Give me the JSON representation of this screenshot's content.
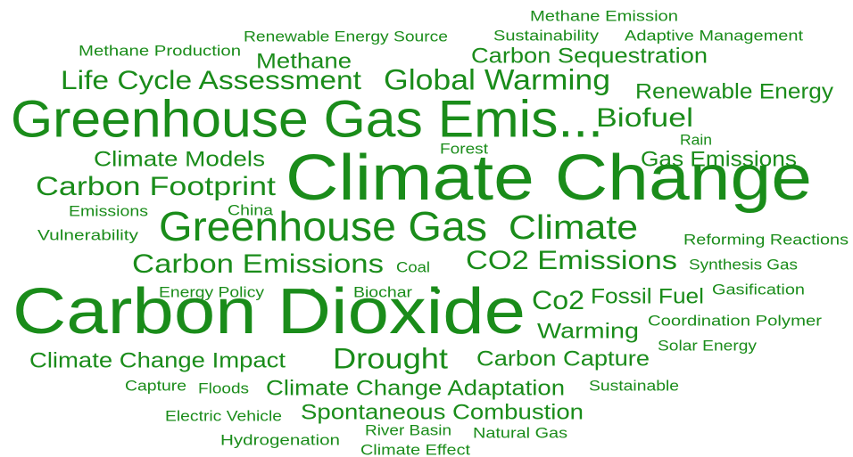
{
  "words": [
    "Methane Emission",
    "Sustainability",
    "Adaptive Management",
    "Renewable Energy Source",
    "Methane Production",
    "Methane",
    "Carbon Sequestration",
    "Life Cycle Assessment",
    "Global Warming",
    "Renewable Energy",
    "Greenhouse Gas Emis...",
    "Biofuel",
    "Rain",
    "Forest",
    "Climate Models",
    "Gas Emissions",
    "Climate Change",
    "Carbon Footprint",
    "Emissions",
    "China",
    "Greenhouse Gas",
    "Climate",
    "Vulnerability",
    "Reforming Reactions",
    "Carbon Emissions",
    "Coal",
    "CO2 Emissions",
    "Synthesis Gas",
    "Energy Policy",
    "Biochar",
    "Gasification",
    "Carbon Dioxide",
    "Co2",
    "Fossil Fuel",
    "Coordination Polymer",
    "Warming",
    "Solar Energy",
    "Climate Change Impact",
    "Drought",
    "Carbon Capture",
    "Capture",
    "Floods",
    "Climate Change Adaptation",
    "Sustainable",
    "Electric Vehicle",
    "Spontaneous Combustion",
    "River Basin",
    "Natural Gas",
    "Hydrogenation",
    "Climate Effect"
  ]
}
